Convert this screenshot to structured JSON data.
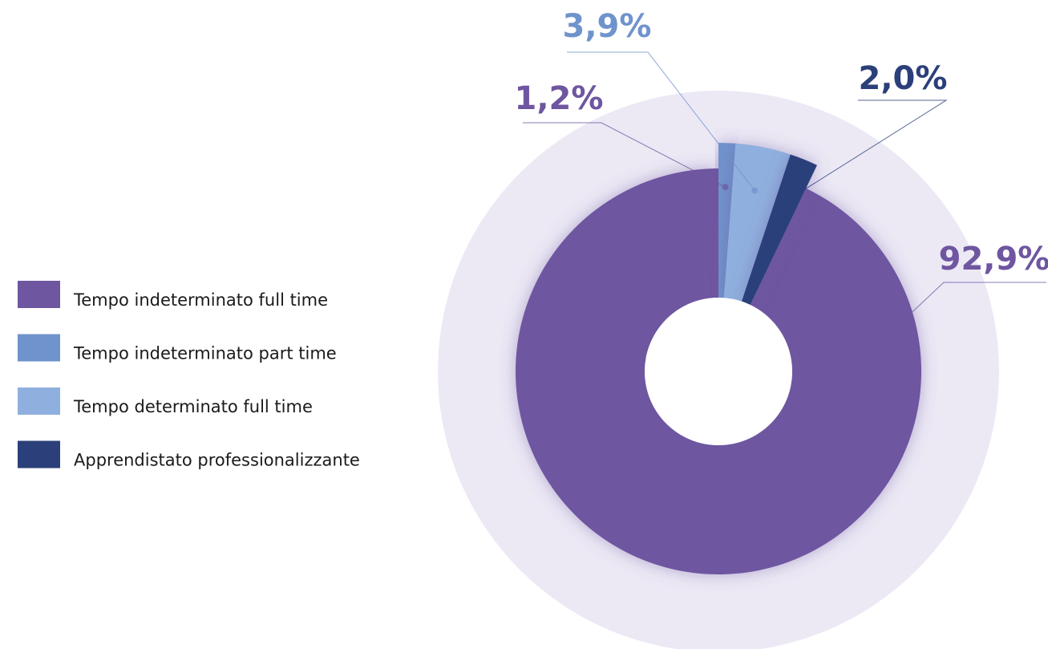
{
  "chart_data": {
    "type": "donut",
    "categories": [
      "Tempo indeterminato full time",
      "Tempo indeterminato part time",
      "Tempo determinato full time",
      "Apprendistato professionalizzante"
    ],
    "values": [
      92.9,
      1.2,
      3.9,
      2.0
    ],
    "value_labels": [
      "92,9%",
      "1,2%",
      "3,9%",
      "2,0%"
    ],
    "colors": [
      "#6e56a0",
      "#6f93cc",
      "#8fb0de",
      "#2b3f7a"
    ],
    "label_colors": [
      "#6e56a0",
      "#6e56a0",
      "#6f93cc",
      "#2b3f7a"
    ],
    "legend": "left"
  }
}
